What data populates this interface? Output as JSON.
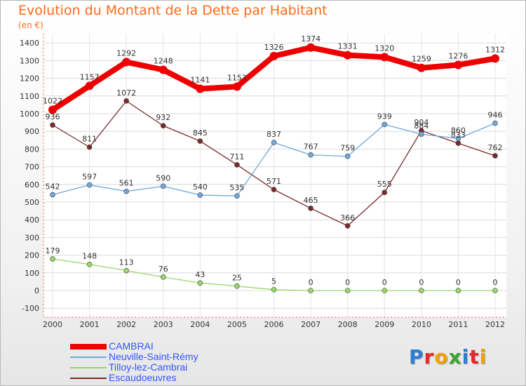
{
  "header": {
    "title": "Evolution du Montant de la Dette par Habitant",
    "subtitle": "(en €)"
  },
  "logo": {
    "text": "Proxiti",
    "letter_colors": [
      "#2a7fd4",
      "#e8262b",
      "#f2a000",
      "#3aa635",
      "#2a7fd4",
      "#e8262b",
      "#f2a000"
    ]
  },
  "chart_data": {
    "type": "line",
    "title": "Evolution du Montant de la Dette par Habitant",
    "subtitle": "(en €)",
    "x": [
      "2000",
      "2001",
      "2002",
      "2003",
      "2004",
      "2005",
      "2006",
      "2007",
      "2008",
      "2009",
      "2010",
      "2011",
      "2012"
    ],
    "ylim": [
      -100,
      1400
    ],
    "yticks": [
      -100,
      0,
      100,
      200,
      300,
      400,
      500,
      600,
      700,
      800,
      900,
      1000,
      1100,
      1200,
      1300,
      1400
    ],
    "grid": true,
    "legend": "bottom-left",
    "series": [
      {
        "name": "CAMBRAI",
        "color": "#ee0000",
        "values": [
          1022,
          1157,
          1292,
          1248,
          1141,
          1153,
          1326,
          1374,
          1331,
          1320,
          1259,
          1276,
          1312
        ]
      },
      {
        "name": "Neuville-Saint-Rémy",
        "color": "#6fa8dc",
        "values": [
          542,
          597,
          561,
          590,
          540,
          535,
          837,
          767,
          759,
          939,
          884,
          860,
          946
        ]
      },
      {
        "name": "Tilloy-lez-Cambrai",
        "color": "#9ad66a",
        "values": [
          179,
          148,
          113,
          76,
          43,
          25,
          5,
          0,
          0,
          0,
          0,
          0,
          0
        ]
      },
      {
        "name": "Escaudoeuvres",
        "color": "#7a2a2a",
        "values": [
          936,
          811,
          1072,
          932,
          845,
          711,
          571,
          465,
          366,
          555,
          904,
          833,
          762
        ]
      }
    ]
  }
}
